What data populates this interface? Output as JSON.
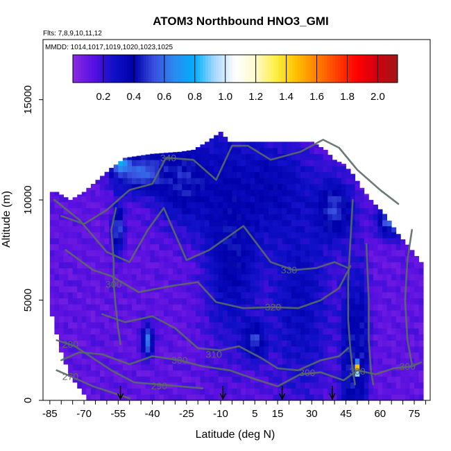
{
  "chart_data": {
    "type": "heatmap",
    "title": "ATOM3 Northbound HNO3_GMI",
    "flights_note": "Flts: 7,8,9,10,11,12",
    "dates_note": "MMDD: 1014,1017,1019,1020,1023,1025",
    "xlabel": "Latitude (deg N)",
    "ylabel": "Altitude (m)",
    "xlim": [
      -88,
      82
    ],
    "ylim": [
      0,
      18000
    ],
    "x_ticks": [
      -85,
      -70,
      -55,
      -40,
      -25,
      -10,
      5,
      15,
      30,
      45,
      60,
      75
    ],
    "x_tick_labels": [
      "-85",
      "-70",
      "-55",
      "-40",
      "-25",
      "-10",
      "5",
      "15",
      "30",
      "45",
      "60",
      "75"
    ],
    "y_ticks": [
      0,
      5000,
      10000,
      15000
    ],
    "y_tick_labels": [
      "0",
      "5000",
      "10000",
      "15000"
    ],
    "colorbar": {
      "range": [
        0.0,
        2.13
      ],
      "ticks": [
        0.2,
        0.4,
        0.6,
        0.8,
        1.0,
        1.2,
        1.4,
        1.6,
        1.8,
        2.0
      ],
      "tick_labels": [
        "0.2",
        "0.4",
        "0.6",
        "0.8",
        "1.0",
        "1.2",
        "1.4",
        "1.6",
        "1.8",
        "2.0"
      ],
      "colors": [
        "#8a2be2",
        "#5a10e0",
        "#1010c8",
        "#0000aa",
        "#3a50e0",
        "#2b8af0",
        "#00b0ff",
        "#a8d8ff",
        "#ffffff",
        "#fffacc",
        "#ffee44",
        "#ffc000",
        "#ff8000",
        "#ff4000",
        "#ff0000",
        "#d00010",
        "#a01818"
      ]
    },
    "contour_labels": [
      {
        "text": "340",
        "lat": -33,
        "alt": 12100
      },
      {
        "text": "330",
        "lat": 20,
        "alt": 6500
      },
      {
        "text": "320",
        "lat": 13,
        "alt": 4650
      },
      {
        "text": "310",
        "lat": -13,
        "alt": 2300
      },
      {
        "text": "300",
        "lat": -28,
        "alt": 2000
      },
      {
        "text": "300",
        "lat": 28,
        "alt": 1380
      },
      {
        "text": "290",
        "lat": -37,
        "alt": 720
      },
      {
        "text": "280",
        "lat": -76,
        "alt": 2800
      },
      {
        "text": "270",
        "lat": -76,
        "alt": 1200
      },
      {
        "text": "300",
        "lat": -57,
        "alt": 5800
      },
      {
        "text": "300",
        "lat": 50,
        "alt": 1450
      },
      {
        "text": "300",
        "lat": 72,
        "alt": 1700
      }
    ],
    "profile_markers_lat": [
      -54,
      -9,
      17,
      39
    ],
    "field": {
      "background_value": 0.12,
      "top_altitude_by_lat": [
        [
          -82,
          10400
        ],
        [
          -76,
          10000
        ],
        [
          -70,
          10400
        ],
        [
          -64,
          11000
        ],
        [
          -58,
          11600
        ],
        [
          -52,
          12100
        ],
        [
          -40,
          12300
        ],
        [
          -28,
          12400
        ],
        [
          -22,
          12500
        ],
        [
          -16,
          12900
        ],
        [
          -10,
          13400
        ],
        [
          -6,
          12900
        ],
        [
          30,
          12900
        ],
        [
          36,
          12500
        ],
        [
          40,
          12000
        ],
        [
          44,
          11800
        ],
        [
          48,
          11300
        ],
        [
          52,
          10600
        ],
        [
          56,
          10000
        ],
        [
          62,
          9300
        ],
        [
          68,
          8300
        ],
        [
          74,
          7500
        ],
        [
          78,
          6900
        ]
      ],
      "bottom_altitude_by_lat": [
        [
          -85,
          4600
        ],
        [
          -80,
          2600
        ],
        [
          -75,
          1200
        ],
        [
          -70,
          400
        ],
        [
          -65,
          0
        ],
        [
          78,
          0
        ]
      ],
      "blobs": [
        {
          "lat": -25,
          "alt": 11000,
          "dlat": 14,
          "dalt": 2300,
          "value": 0.45
        },
        {
          "lat": -5,
          "alt": 8000,
          "dlat": 12,
          "dalt": 5000,
          "value": 0.42
        },
        {
          "lat": 12,
          "alt": 10500,
          "dlat": 18,
          "dalt": 2500,
          "value": 0.38
        },
        {
          "lat": 25,
          "alt": 5000,
          "dlat": 14,
          "dalt": 5000,
          "value": 0.33
        },
        {
          "lat": -45,
          "alt": 11400,
          "dlat": 12,
          "dalt": 1000,
          "value": 0.58
        },
        {
          "lat": -54,
          "alt": 11800,
          "dlat": 4,
          "dalt": 500,
          "value": 0.75
        },
        {
          "lat": -55,
          "alt": 8600,
          "dlat": 2.5,
          "dalt": 1200,
          "value": 0.55
        },
        {
          "lat": -42,
          "alt": 3000,
          "dlat": 2.5,
          "dalt": 800,
          "value": 0.62
        },
        {
          "lat": 5,
          "alt": 3000,
          "dlat": 5,
          "dalt": 900,
          "value": 0.5
        },
        {
          "lat": 47,
          "alt": 1800,
          "dlat": 4,
          "dalt": 4500,
          "value": 0.45
        },
        {
          "lat": 52,
          "alt": 2500,
          "dlat": 3,
          "dalt": 4000,
          "value": 0.42
        },
        {
          "lat": 65,
          "alt": 9000,
          "dlat": 6,
          "dalt": 800,
          "value": 0.6
        },
        {
          "lat": 72,
          "alt": 9200,
          "dlat": 4,
          "dalt": 600,
          "value": 0.7
        },
        {
          "lat": 50,
          "alt": 1600,
          "dlat": 1,
          "dalt": 300,
          "value": 1.45
        },
        {
          "lat": 40,
          "alt": 9500,
          "dlat": 8,
          "dalt": 1500,
          "value": 0.5
        }
      ]
    }
  }
}
